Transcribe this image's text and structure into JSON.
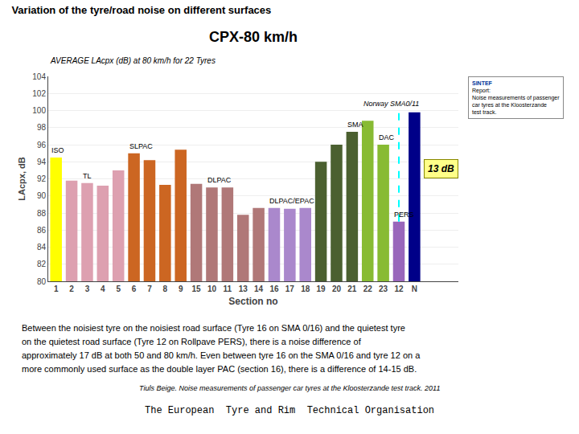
{
  "chart_data": {
    "type": "bar",
    "suptitle": "Variation of the tyre/road noise on different surfaces",
    "title": "CPX-80 km/h",
    "subtitle": "AVERAGE LAcpx (dB) at 80 km/h for 22 Tyres",
    "xlabel": "Section no",
    "ylabel": "LAcpx, dB",
    "categories": [
      "1",
      "2",
      "3",
      "4",
      "5",
      "6",
      "7",
      "8",
      "9",
      "15",
      "10",
      "11",
      "13",
      "14",
      "16",
      "17",
      "18",
      "19",
      "20",
      "21",
      "22",
      "23",
      "12",
      "N"
    ],
    "values": [
      94.5,
      91.8,
      91.5,
      91.2,
      93.0,
      95.0,
      94.2,
      91.3,
      95.4,
      91.4,
      91.0,
      91.0,
      87.8,
      88.6,
      88.6,
      88.5,
      88.6,
      94.0,
      96.0,
      97.5,
      98.8,
      96.0,
      87.0,
      99.8
    ],
    "colors": [
      "#FFFF00",
      "#DDA0B0",
      "#DDA0B0",
      "#DDA0B0",
      "#DDA0B0",
      "#CC6622",
      "#CC6622",
      "#CC6622",
      "#CC6622",
      "#B07878",
      "#B07878",
      "#B07878",
      "#B07878",
      "#B07878",
      "#AA88CC",
      "#AA88CC",
      "#AA88CC",
      "#4B6030",
      "#4B6030",
      "#4B6030",
      "#88BB33",
      "#88BB33",
      "#9966BB",
      "#000088"
    ],
    "ylim": [
      80,
      104
    ],
    "yticks": [
      80,
      82,
      84,
      86,
      88,
      90,
      92,
      94,
      96,
      98,
      100,
      102,
      104
    ],
    "grid": true,
    "group_labels": [
      {
        "text": "ISO",
        "category": "1"
      },
      {
        "text": "TL",
        "category": "3"
      },
      {
        "text": "SLPAC",
        "category": "6"
      },
      {
        "text": "DLPAC",
        "category": "10"
      },
      {
        "text": "DLPAC/EPAC",
        "category": "16"
      },
      {
        "text": "SMA",
        "category": "21"
      },
      {
        "text": "DAC",
        "category": "23"
      },
      {
        "text": "PERS",
        "category": "12"
      }
    ],
    "annotations": [
      {
        "text": "Norway SMA0/11",
        "category": "N"
      },
      {
        "text": "13 dB",
        "from_category": "12",
        "to_category": "N"
      }
    ],
    "inset": [
      "SINTEF",
      "Report:",
      "Noise measurements of passenger\ncar tyres at the Kloosterzande\ntest track."
    ],
    "notes": [
      "Between the noisiest tyre on the noisiest road surface (Tyre 16 on SMA 0/16) and the quietest tyre",
      "on the quietest road surface (Tyre 12 on Rollpave PERS), there is a noise difference of",
      "approximately 17 dB at both 50 and 80 km/h. Even between tyre 16 on the SMA 0/16 and tyre 12 on a",
      "more commonly used surface as the double layer PAC (section 16), there is a difference of 14-15 dB."
    ],
    "source": "Tiuls Beige. Noise measurements of passenger car tyres at the Kloosterzande test track. 2011",
    "footer": "The European  Tyre and Rim  Technical Organisation"
  }
}
